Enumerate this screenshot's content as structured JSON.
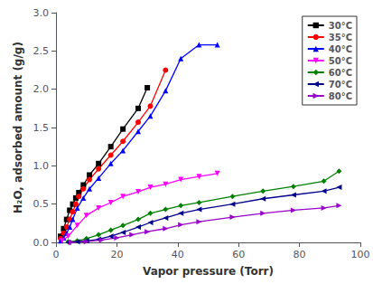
{
  "chart_data": {
    "type": "line",
    "xlabel": "Vapor pressure (Torr)",
    "ylabel": "H₂O, adsorbed amount (g/g)",
    "xlim": [
      0,
      100
    ],
    "ylim": [
      0,
      3.0
    ],
    "xticks": [
      0,
      20,
      40,
      60,
      80,
      100
    ],
    "yticks": [
      {
        "value": 0.0,
        "label": "0.0"
      },
      0.5,
      {
        "value": 1.0,
        "label": "1.0"
      },
      1.5,
      {
        "value": 2.0,
        "label": "2.0"
      },
      2.5,
      {
        "value": 3.0,
        "label": "3.0"
      }
    ],
    "grid": false,
    "legend": "upper right",
    "series": [
      {
        "name": "30°C",
        "color": "#000000",
        "marker": "square",
        "x": [
          1.5,
          2.5,
          3.5,
          4.5,
          5.5,
          6.5,
          7.5,
          9,
          11,
          14,
          18,
          22,
          27,
          30
        ],
        "values": [
          0.08,
          0.18,
          0.3,
          0.42,
          0.5,
          0.58,
          0.65,
          0.75,
          0.88,
          1.03,
          1.25,
          1.48,
          1.75,
          2.02
        ]
      },
      {
        "name": "35°C",
        "color": "#ff0000",
        "marker": "circle",
        "x": [
          1.5,
          2.5,
          3.5,
          4.5,
          5.5,
          6.5,
          7.5,
          9,
          11,
          14,
          18,
          22,
          27,
          31,
          36
        ],
        "values": [
          0.05,
          0.12,
          0.2,
          0.3,
          0.4,
          0.5,
          0.6,
          0.7,
          0.82,
          0.96,
          1.14,
          1.32,
          1.57,
          1.78,
          2.25
        ]
      },
      {
        "name": "40°C",
        "color": "#0000ff",
        "marker": "triangle-up",
        "x": [
          1.5,
          2.5,
          3.5,
          4.5,
          5.5,
          7,
          9,
          11,
          14,
          18,
          22,
          27,
          31,
          36,
          41,
          47,
          53
        ],
        "values": [
          0.02,
          0.06,
          0.12,
          0.2,
          0.3,
          0.45,
          0.58,
          0.7,
          0.84,
          1.03,
          1.2,
          1.45,
          1.65,
          1.98,
          2.4,
          2.58,
          2.58
        ]
      },
      {
        "name": "50°C",
        "color": "#ff00ff",
        "marker": "triangle-down",
        "x": [
          2,
          4,
          7,
          10,
          14,
          18,
          22,
          27,
          31,
          36,
          41,
          47,
          53
        ],
        "values": [
          0.02,
          0.08,
          0.22,
          0.35,
          0.45,
          0.52,
          0.6,
          0.66,
          0.72,
          0.76,
          0.82,
          0.86,
          0.9
        ]
      },
      {
        "name": "60°C",
        "color": "#008000",
        "marker": "diamond",
        "x": [
          4,
          7,
          10,
          14,
          18,
          22,
          27,
          31,
          36,
          41,
          47,
          58,
          68,
          78,
          88,
          93
        ],
        "values": [
          0.01,
          0.02,
          0.05,
          0.1,
          0.16,
          0.22,
          0.3,
          0.38,
          0.43,
          0.48,
          0.52,
          0.6,
          0.67,
          0.73,
          0.8,
          0.93
        ]
      },
      {
        "name": "70°C",
        "color": "#00008b",
        "marker": "triangle-left",
        "x": [
          4,
          7,
          10,
          14,
          18,
          22,
          27,
          31,
          36,
          41,
          47,
          58,
          68,
          78,
          88,
          93
        ],
        "values": [
          0.0,
          0.01,
          0.02,
          0.04,
          0.08,
          0.13,
          0.2,
          0.26,
          0.32,
          0.38,
          0.43,
          0.5,
          0.57,
          0.62,
          0.67,
          0.72
        ]
      },
      {
        "name": "80°C",
        "color": "#9900cc",
        "marker": "triangle-right",
        "x": [
          5,
          10,
          15,
          20,
          25,
          30,
          36,
          41,
          47,
          58,
          68,
          78,
          88,
          93
        ],
        "values": [
          0.0,
          0.01,
          0.03,
          0.06,
          0.1,
          0.14,
          0.18,
          0.23,
          0.27,
          0.33,
          0.38,
          0.42,
          0.45,
          0.48
        ]
      }
    ]
  }
}
